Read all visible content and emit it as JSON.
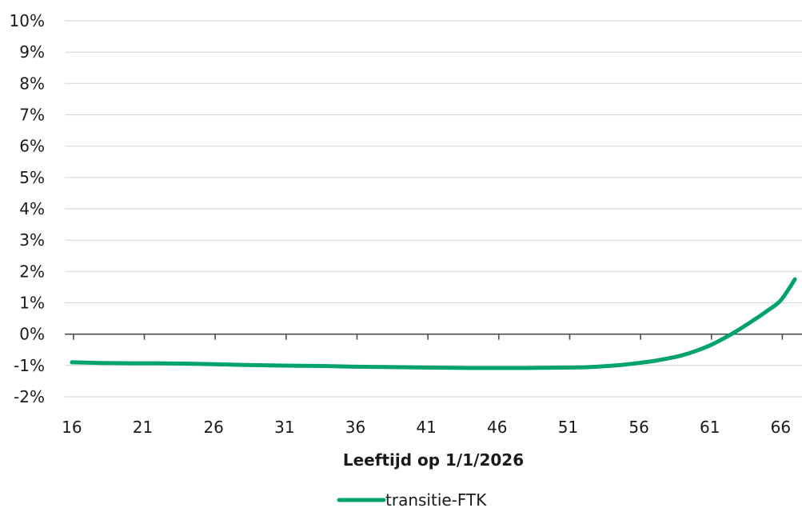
{
  "chart_data": {
    "type": "line",
    "xlabel": "Leeftijd op 1/1/2026",
    "ylabel": "",
    "x_ticks": [
      16,
      21,
      26,
      31,
      36,
      41,
      46,
      51,
      56,
      61,
      66
    ],
    "y_ticks": [
      -2,
      -1,
      0,
      1,
      2,
      3,
      4,
      5,
      6,
      7,
      8,
      9,
      10
    ],
    "y_tick_labels": [
      "-2%",
      "-1%",
      "0%",
      "1%",
      "2%",
      "3%",
      "4%",
      "5%",
      "6%",
      "7%",
      "8%",
      "9%",
      "10%"
    ],
    "xlim": [
      15.5,
      67.5
    ],
    "ylim": [
      -2,
      10
    ],
    "grid": true,
    "legend_position": "bottom",
    "series": [
      {
        "name": "transitie-FTK",
        "color": "#00A36C",
        "x": [
          16,
          18,
          20,
          22,
          24,
          26,
          28,
          30,
          32,
          34,
          36,
          38,
          40,
          42,
          44,
          46,
          48,
          50,
          52,
          53,
          54,
          55,
          56,
          57,
          58,
          59,
          60,
          61,
          62,
          63,
          64,
          65,
          66,
          67
        ],
        "y": [
          -0.9,
          -0.92,
          -0.93,
          -0.93,
          -0.94,
          -0.96,
          -0.98,
          -1.0,
          -1.01,
          -1.02,
          -1.04,
          -1.05,
          -1.06,
          -1.07,
          -1.08,
          -1.08,
          -1.08,
          -1.07,
          -1.06,
          -1.04,
          -1.01,
          -0.97,
          -0.92,
          -0.86,
          -0.78,
          -0.68,
          -0.54,
          -0.36,
          -0.13,
          0.13,
          0.42,
          0.73,
          1.08,
          1.75
        ]
      }
    ]
  }
}
